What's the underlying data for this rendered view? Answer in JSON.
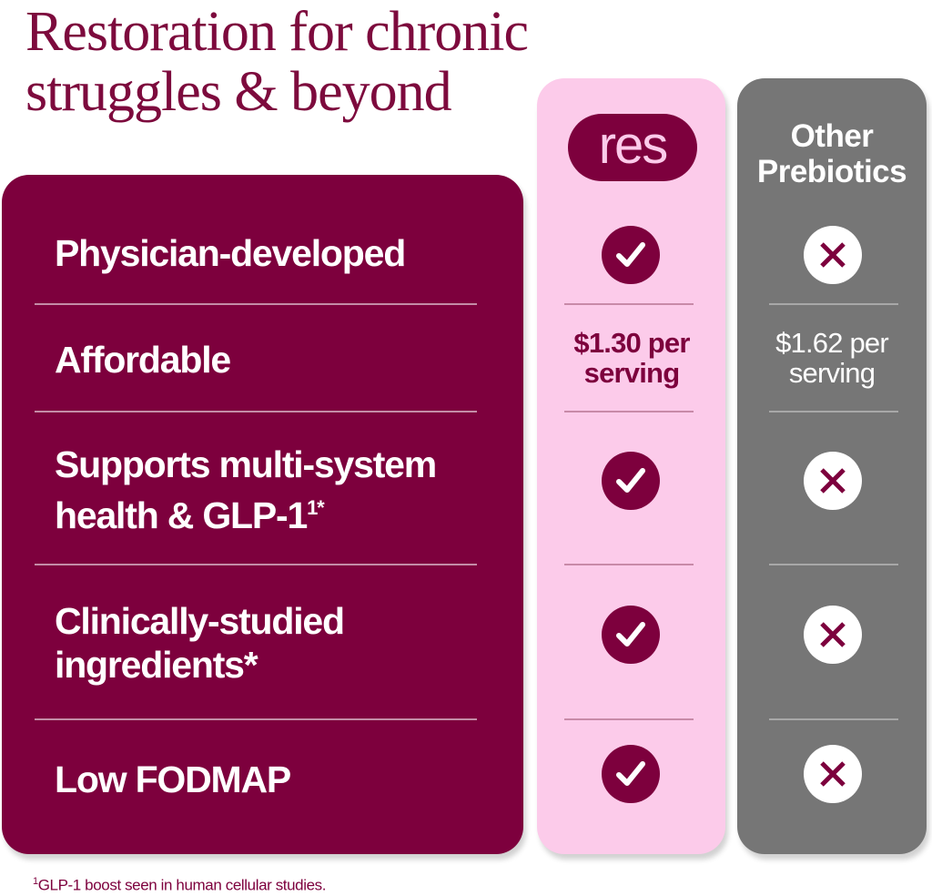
{
  "title": {
    "line1": "Restoration for chronic",
    "line2": "struggles & beyond"
  },
  "columns": {
    "res": "res",
    "other_line1": "Other",
    "other_line2": "Prebiotics"
  },
  "rows": [
    {
      "line1": "Physician-developed",
      "line2": "",
      "res": "check-icon",
      "other": "cross-icon"
    },
    {
      "line1": "Affordable",
      "line2": "",
      "res_price_line1": "$1.30 per",
      "res_price_line2": "serving",
      "other_price_line1": "$1.62 per",
      "other_price_line2": "serving"
    },
    {
      "line1": "Supports multi-system",
      "line2": "health & GLP-1",
      "sup": "1*",
      "res": "check-icon",
      "other": "cross-icon"
    },
    {
      "line1": "Clinically-studied",
      "line2": "ingredients*",
      "res": "check-icon",
      "other": "cross-icon"
    },
    {
      "line1": "Low FODMAP",
      "line2": "",
      "res": "check-icon",
      "other": "cross-icon"
    }
  ],
  "footnote": {
    "sup": "1",
    "text": "GLP-1 boost seen in human cellular studies."
  },
  "colors": {
    "maroon": "#7d003d",
    "pink": "#fccbea",
    "gray": "#767676"
  }
}
